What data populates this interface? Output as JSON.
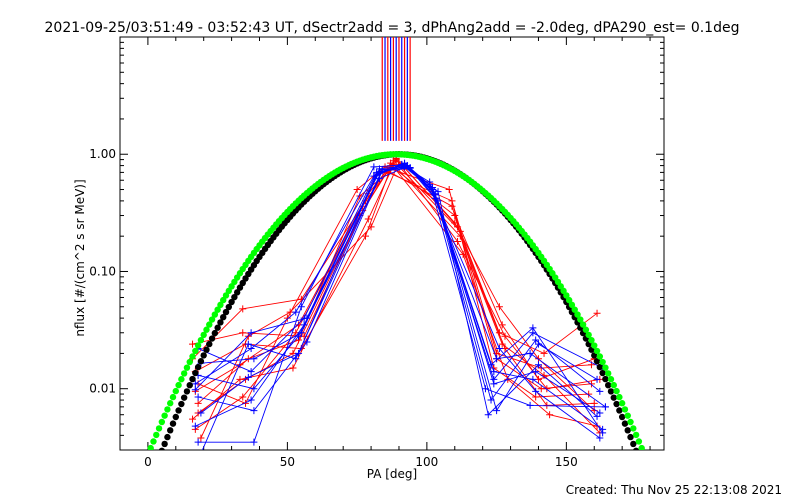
{
  "chart_data": {
    "type": "line",
    "title": "2021-09-25/03:51:49 - 03:52:43 UT, dSectr2add = 3, dPhAng2add = -2.0deg, dPA290_est=  0.1deg",
    "xlabel": "PA [deg]",
    "ylabel": "nflux [#/(cm^2 s sr MeV)]",
    "xlim": [
      -10,
      185
    ],
    "ylim": [
      0.003,
      10
    ],
    "yscale": "log",
    "x_ticks": [
      {
        "value": 0,
        "label": "0"
      },
      {
        "value": 50,
        "label": "50"
      },
      {
        "value": 100,
        "label": "100"
      },
      {
        "value": 150,
        "label": "150"
      }
    ],
    "y_ticks": [
      {
        "value": 0.01,
        "label": "0.01"
      },
      {
        "value": 0.1,
        "label": "0.10"
      },
      {
        "value": 1.0,
        "label": "1.00"
      }
    ],
    "footer": "Created: Thu Nov 25 22:13:08 2021",
    "colors": {
      "red": "#ff0000",
      "blue": "#0000ff",
      "black": "#000000",
      "green": "#00ff00"
    },
    "vertical_bars": {
      "color_red": "#ff0000",
      "color_blue": "#0000ff",
      "y_from": 1.3,
      "x_values": [
        84.0,
        85.0,
        86.0,
        87.0,
        88.0,
        89.0,
        90.0,
        91.0,
        92.0,
        93.0,
        94.0
      ]
    },
    "fit_curves": [
      {
        "color": "#000000",
        "center": 90,
        "sigma": 24.9
      },
      {
        "color": "#00ff00",
        "center": 89,
        "sigma": 25.9
      }
    ],
    "series": [
      {
        "color": "#ff0000",
        "x": [
          16,
          34,
          56,
          77,
          87,
          110,
          127,
          140,
          160
        ],
        "y": [
          0.024,
          0.03,
          0.028,
          0.33,
          0.8,
          0.3,
          0.035,
          0.012,
          0.018
        ]
      },
      {
        "color": "#ff0000",
        "x": [
          17,
          35,
          55,
          78,
          88,
          112,
          126,
          142,
          161
        ],
        "y": [
          0.014,
          0.024,
          0.022,
          0.2,
          0.88,
          0.22,
          0.03,
          0.02,
          0.044
        ]
      },
      {
        "color": "#ff0000",
        "x": [
          18,
          36,
          54,
          76,
          86,
          109,
          125,
          141,
          159
        ],
        "y": [
          0.0075,
          0.018,
          0.026,
          0.44,
          0.7,
          0.4,
          0.02,
          0.015,
          0.016
        ]
      },
      {
        "color": "#ff0000",
        "x": [
          16,
          33,
          52,
          79,
          89,
          111,
          128,
          143,
          162
        ],
        "y": [
          0.0055,
          0.012,
          0.015,
          0.28,
          0.9,
          0.18,
          0.028,
          0.01,
          0.012
        ]
      },
      {
        "color": "#ff0000",
        "x": [
          18,
          35,
          50,
          75,
          85,
          108,
          124,
          139,
          158
        ],
        "y": [
          0.011,
          0.0075,
          0.04,
          0.5,
          0.78,
          0.5,
          0.015,
          0.0085,
          0.009
        ]
      },
      {
        "color": "#ff0000",
        "x": [
          17,
          34,
          53,
          77,
          87,
          113,
          129,
          144,
          161
        ],
        "y": [
          0.0045,
          0.0085,
          0.03,
          0.36,
          0.84,
          0.14,
          0.012,
          0.006,
          0.0048
        ]
      },
      {
        "color": "#ff0000",
        "x": [
          19,
          36,
          51,
          80,
          90,
          110,
          126,
          140,
          160
        ],
        "y": [
          0.0038,
          0.028,
          0.045,
          0.24,
          0.86,
          0.26,
          0.05,
          0.018,
          0.0065
        ]
      },
      {
        "color": "#ff0000",
        "x": [
          16,
          34,
          55,
          78,
          88,
          112,
          127,
          142,
          162
        ],
        "y": [
          0.018,
          0.048,
          0.058,
          0.4,
          0.82,
          0.2,
          0.024,
          0.013,
          0.0042
        ]
      },
      {
        "color": "#ff0000",
        "x": [
          18,
          35,
          52,
          76,
          86,
          109,
          125,
          141,
          159
        ],
        "y": [
          0.0062,
          0.012,
          0.02,
          0.3,
          0.72,
          0.36,
          0.018,
          0.01,
          0.011
        ]
      },
      {
        "color": "#ff0000",
        "x": [
          17,
          33,
          54,
          79,
          89,
          111,
          128,
          143,
          160
        ],
        "y": [
          0.0095,
          0.016,
          0.035,
          0.46,
          0.92,
          0.24,
          0.022,
          0.0072,
          0.0075
        ]
      },
      {
        "color": "#0000ff",
        "x": [
          18,
          37,
          56,
          82,
          92,
          102,
          124,
          138,
          163
        ],
        "y": [
          0.022,
          0.014,
          0.04,
          0.7,
          0.78,
          0.5,
          0.012,
          0.03,
          0.015
        ]
      },
      {
        "color": "#0000ff",
        "x": [
          19,
          38,
          55,
          83,
          93,
          103,
          123,
          139,
          162
        ],
        "y": [
          0.0165,
          0.018,
          0.03,
          0.75,
          0.8,
          0.45,
          0.008,
          0.026,
          0.0095
        ]
      },
      {
        "color": "#0000ff",
        "x": [
          17,
          37,
          53,
          81,
          91,
          101,
          125,
          137,
          164
        ],
        "y": [
          0.011,
          0.022,
          0.045,
          0.65,
          0.82,
          0.55,
          0.018,
          0.02,
          0.007
        ]
      },
      {
        "color": "#0000ff",
        "x": [
          18,
          38,
          57,
          84,
          94,
          104,
          122,
          140,
          161
        ],
        "y": [
          0.0085,
          0.0065,
          0.025,
          0.72,
          0.76,
          0.48,
          0.006,
          0.016,
          0.0058
        ]
      },
      {
        "color": "#0000ff",
        "x": [
          19,
          36,
          54,
          82,
          92,
          102,
          124,
          138,
          163
        ],
        "y": [
          0.0062,
          0.0125,
          0.02,
          0.68,
          0.84,
          0.52,
          0.014,
          0.012,
          0.0045
        ]
      },
      {
        "color": "#0000ff",
        "x": [
          17,
          37,
          56,
          83,
          93,
          103,
          126,
          139,
          162
        ],
        "y": [
          0.0048,
          0.008,
          0.035,
          0.62,
          0.79,
          0.42,
          0.022,
          0.0095,
          0.0038
        ]
      },
      {
        "color": "#0000ff",
        "x": [
          18,
          38,
          55,
          81,
          91,
          101,
          121,
          137,
          164
        ],
        "y": [
          0.0035,
          0.0035,
          0.05,
          0.78,
          0.81,
          0.58,
          0.01,
          0.0072,
          0.007
        ]
      },
      {
        "color": "#0000ff",
        "x": [
          19,
          36,
          53,
          84,
          94,
          104,
          125,
          140,
          161
        ],
        "y": [
          0.0028,
          0.024,
          0.018,
          0.74,
          0.77,
          0.4,
          0.0065,
          0.024,
          0.012
        ]
      },
      {
        "color": "#0000ff",
        "x": [
          17,
          37,
          57,
          82,
          92,
          102,
          123,
          138,
          163
        ],
        "y": [
          0.0098,
          0.03,
          0.04,
          0.66,
          0.83,
          0.5,
          0.016,
          0.033,
          0.0042
        ]
      },
      {
        "color": "#0000ff",
        "x": [
          18,
          38,
          54,
          83,
          93,
          103,
          124,
          139,
          162
        ],
        "y": [
          0.013,
          0.01,
          0.028,
          0.71,
          0.8,
          0.46,
          0.011,
          0.014,
          0.0062
        ]
      }
    ]
  }
}
